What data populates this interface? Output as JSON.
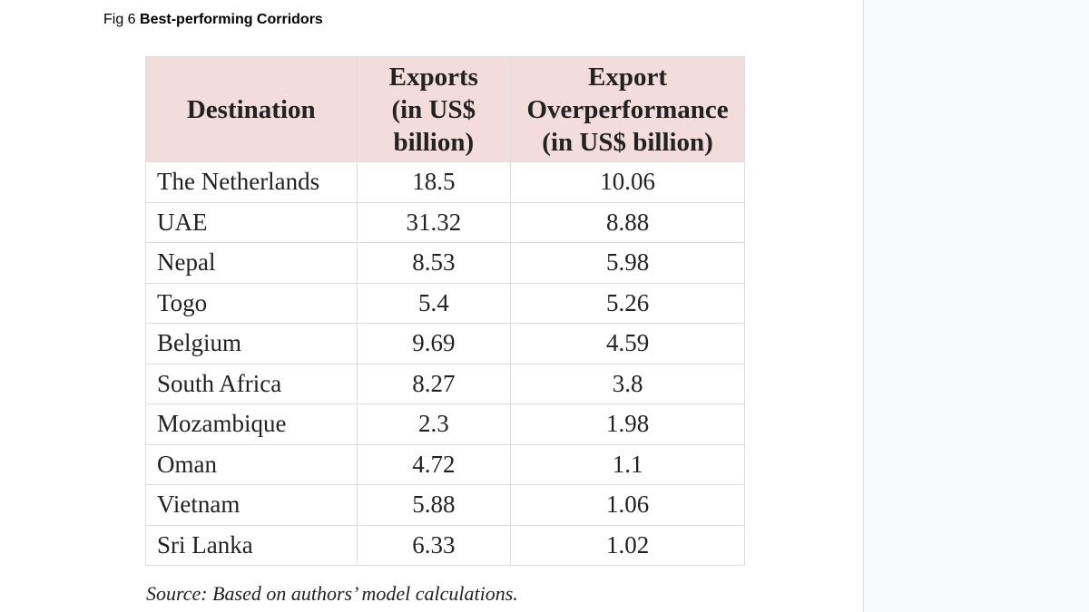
{
  "figure": {
    "label": "Fig 6",
    "title": "Best-performing Corridors"
  },
  "table": {
    "headers": {
      "destination": "Destination",
      "exports_line1": "Exports",
      "exports_line2": "(in US$",
      "exports_line3": "billion)",
      "over_line1": "Export",
      "over_line2": "Overperformance",
      "over_line3": "(in US$ billion)"
    },
    "rows": [
      {
        "destination": "The Netherlands",
        "exports": "18.5",
        "overperformance": "10.06"
      },
      {
        "destination": "UAE",
        "exports": "31.32",
        "overperformance": "8.88"
      },
      {
        "destination": "Nepal",
        "exports": "8.53",
        "overperformance": "5.98"
      },
      {
        "destination": "Togo",
        "exports": "5.4",
        "overperformance": "5.26"
      },
      {
        "destination": "Belgium",
        "exports": "9.69",
        "overperformance": "4.59"
      },
      {
        "destination": "South Africa",
        "exports": "8.27",
        "overperformance": "3.8"
      },
      {
        "destination": "Mozambique",
        "exports": "2.3",
        "overperformance": "1.98"
      },
      {
        "destination": "Oman",
        "exports": "4.72",
        "overperformance": "1.1"
      },
      {
        "destination": "Vietnam",
        "exports": "5.88",
        "overperformance": "1.06"
      },
      {
        "destination": "Sri Lanka",
        "exports": "6.33",
        "overperformance": "1.02"
      }
    ]
  },
  "source": "Source: Based on authors’ model calculations.",
  "colors": {
    "header_background": "#f3dcdc",
    "grid_line": "#dcdcdc",
    "side_panel": "#f8f9fa"
  }
}
